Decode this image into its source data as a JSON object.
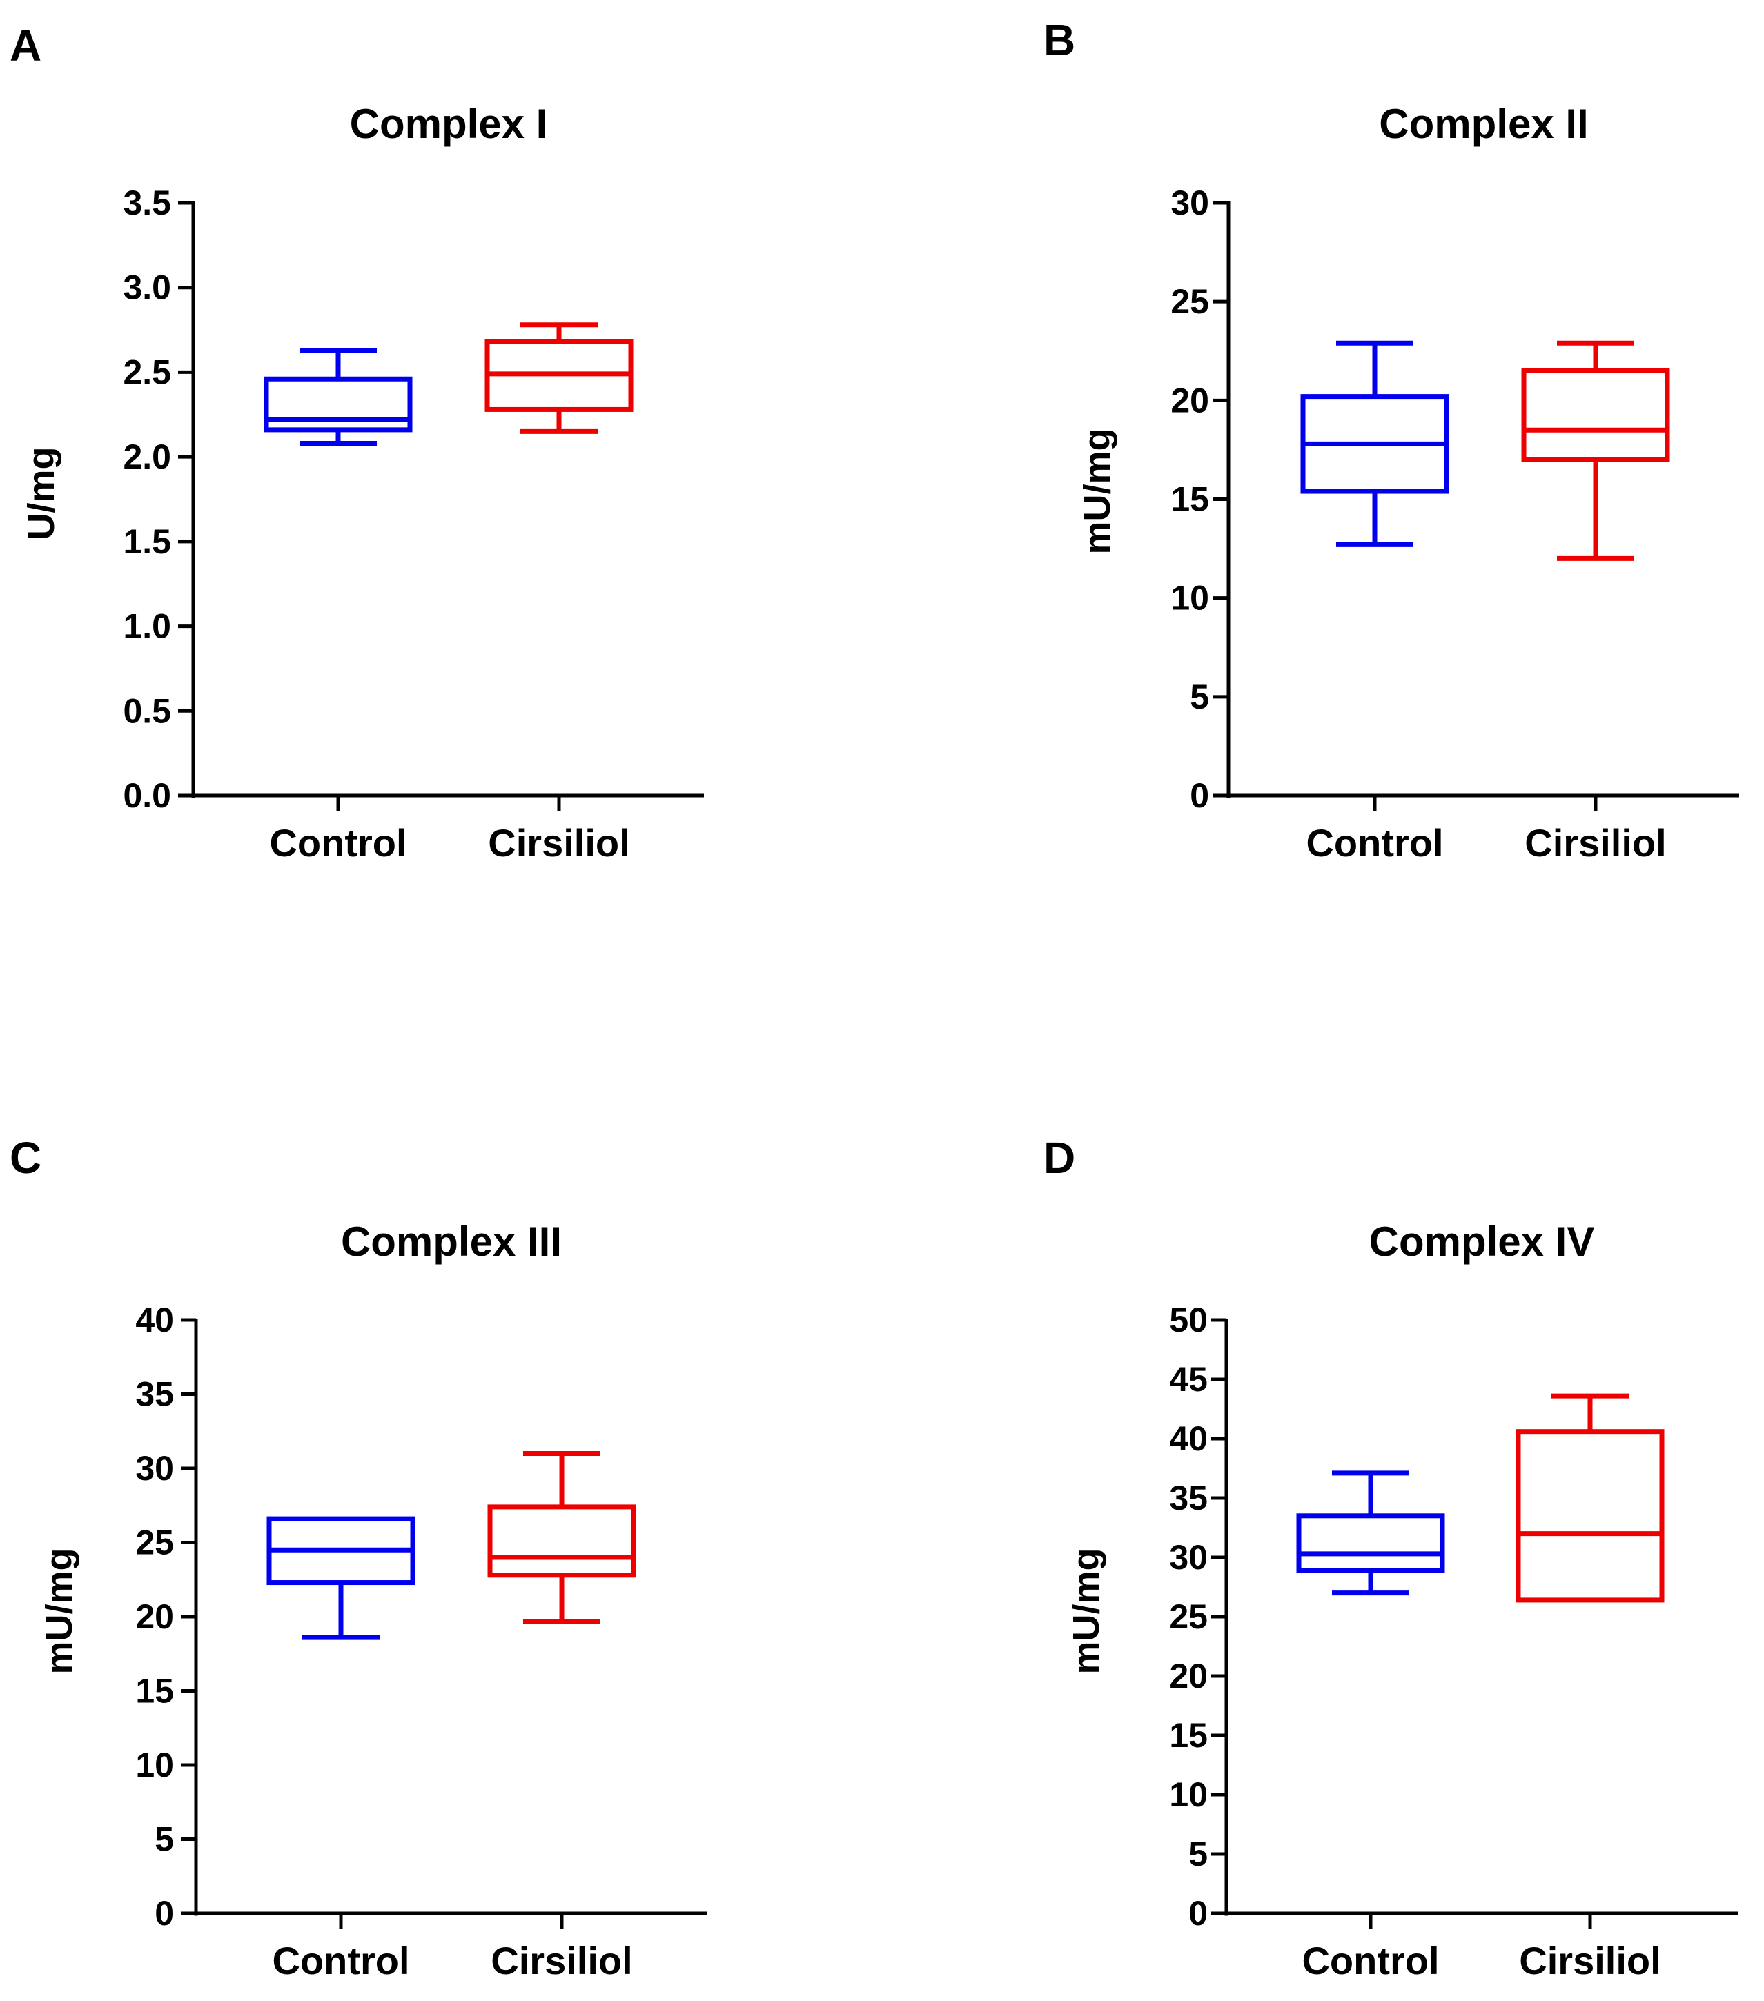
{
  "chart_data": [
    {
      "type": "box",
      "panel": "A",
      "title": "Complex I",
      "xlabel": "",
      "ylabel": "U/mg",
      "ylim": [
        0,
        3.5
      ],
      "yticks": [
        "0.0",
        "0.5",
        "1.0",
        "1.5",
        "2.0",
        "2.5",
        "3.0",
        "3.5"
      ],
      "tick_step": 0.5,
      "categories": [
        "Control",
        "Cirsiliol"
      ],
      "series": [
        {
          "name": "Control",
          "color": "#0000ee",
          "min": 2.08,
          "q1": 2.16,
          "median": 2.22,
          "q3": 2.46,
          "max": 2.63
        },
        {
          "name": "Cirsiliol",
          "color": "#ee0000",
          "min": 2.15,
          "q1": 2.28,
          "median": 2.49,
          "q3": 2.68,
          "max": 2.78
        }
      ]
    },
    {
      "type": "box",
      "panel": "B",
      "title": "Complex II",
      "xlabel": "",
      "ylabel": "mU/mg",
      "ylim": [
        0,
        30
      ],
      "yticks": [
        "0",
        "5",
        "10",
        "15",
        "20",
        "25",
        "30"
      ],
      "tick_step": 5,
      "categories": [
        "Control",
        "Cirsiliol"
      ],
      "series": [
        {
          "name": "Control",
          "color": "#0000ee",
          "min": 12.7,
          "q1": 15.4,
          "median": 17.8,
          "q3": 20.2,
          "max": 22.9
        },
        {
          "name": "Cirsiliol",
          "color": "#ee0000",
          "min": 12.0,
          "q1": 17.0,
          "median": 18.5,
          "q3": 21.5,
          "max": 22.9
        }
      ]
    },
    {
      "type": "box",
      "panel": "C",
      "title": "Complex III",
      "xlabel": "",
      "ylabel": "mU/mg",
      "ylim": [
        0,
        40
      ],
      "yticks": [
        "0",
        "5",
        "10",
        "15",
        "20",
        "25",
        "30",
        "35",
        "40"
      ],
      "tick_step": 5,
      "categories": [
        "Control",
        "Cirsiliol"
      ],
      "series": [
        {
          "name": "Control",
          "color": "#0000ee",
          "min": 18.6,
          "q1": 22.3,
          "median": 24.5,
          "q3": 26.6,
          "max": 26.6
        },
        {
          "name": "Cirsiliol",
          "color": "#ee0000",
          "min": 19.7,
          "q1": 22.8,
          "median": 24.0,
          "q3": 27.4,
          "max": 31.0
        }
      ]
    },
    {
      "type": "box",
      "panel": "D",
      "title": "Complex IV",
      "xlabel": "",
      "ylabel": "mU/mg",
      "ylim": [
        0,
        50
      ],
      "yticks": [
        "0",
        "5",
        "10",
        "15",
        "20",
        "25",
        "30",
        "35",
        "40",
        "45",
        "50"
      ],
      "tick_step": 5,
      "categories": [
        "Control",
        "Cirsiliol"
      ],
      "series": [
        {
          "name": "Control",
          "color": "#0000ee",
          "min": 27.0,
          "q1": 28.9,
          "median": 30.3,
          "q3": 33.5,
          "max": 37.1
        },
        {
          "name": "Cirsiliol",
          "color": "#ee0000",
          "min": 26.4,
          "q1": 26.4,
          "median": 32.0,
          "q3": 40.6,
          "max": 43.6
        }
      ]
    }
  ]
}
